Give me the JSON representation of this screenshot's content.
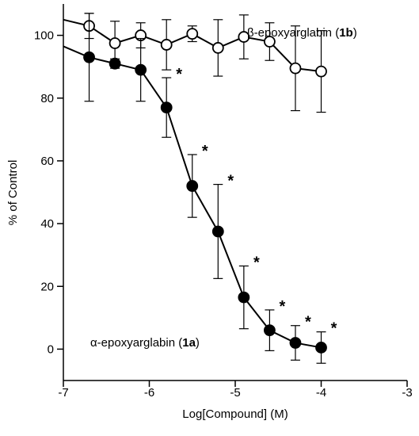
{
  "chart_data": {
    "type": "line",
    "title": "",
    "xlabel": "Log[Compound] (M)",
    "ylabel": "% of Control",
    "xlim": [
      -7,
      -3
    ],
    "ylim": [
      -10,
      110
    ],
    "xticks": [
      -7,
      -6,
      -5,
      -4,
      -3
    ],
    "xtick_labels": [
      "-7",
      "-6",
      "-5",
      "-4",
      "-3"
    ],
    "yticks": [
      0,
      20,
      40,
      60,
      80,
      100
    ],
    "ytick_labels": [
      "0",
      "20",
      "40",
      "60",
      "80",
      "100"
    ],
    "grid": false,
    "series": [
      {
        "label_prefix": "β-epoxyarglabin (",
        "label_bold": "1b",
        "label_suffix": ")",
        "marker": "open-circle",
        "line_start": [
          -7.0,
          105.0
        ],
        "x": [
          -6.7,
          -6.4,
          -6.1,
          -5.8,
          -5.5,
          -5.2,
          -4.9,
          -4.6,
          -4.3,
          -4.0
        ],
        "y": [
          103,
          97.5,
          100,
          97,
          100.5,
          96,
          99.5,
          98,
          89.5,
          88.5
        ],
        "err": [
          4,
          7,
          4,
          8,
          2.5,
          9,
          7,
          6,
          13.5,
          13
        ],
        "significant": [
          false,
          false,
          false,
          false,
          false,
          false,
          false,
          false,
          false,
          false
        ]
      },
      {
        "label_prefix": "α-epoxyarglabin (",
        "label_bold": "1a",
        "label_suffix": ")",
        "marker": "filled-circle",
        "line_start": [
          -7.0,
          96.5
        ],
        "x": [
          -6.7,
          -6.4,
          -6.1,
          -5.8,
          -5.5,
          -5.2,
          -4.9,
          -4.6,
          -4.3,
          -4.0
        ],
        "y": [
          93,
          91,
          89,
          77,
          52,
          37.5,
          16.5,
          6,
          2,
          0.5
        ],
        "err": [
          14,
          1.5,
          10,
          9.5,
          10,
          15,
          10,
          6.5,
          5.5,
          5
        ],
        "significant": [
          false,
          false,
          false,
          true,
          true,
          true,
          true,
          true,
          true,
          true
        ]
      }
    ],
    "significance_marker": "*"
  }
}
